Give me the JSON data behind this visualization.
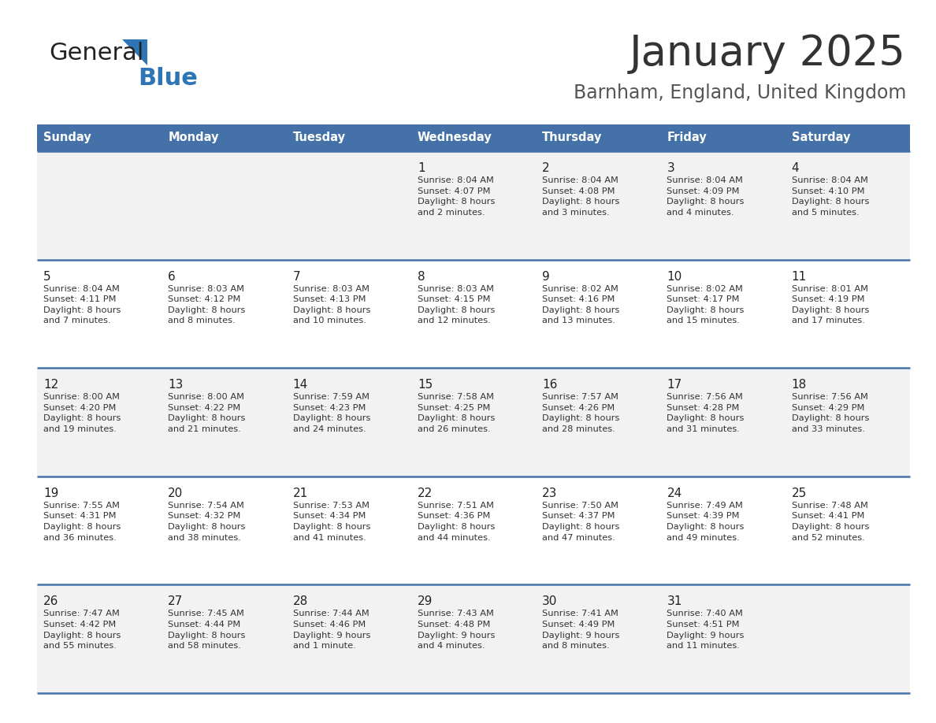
{
  "title": "January 2025",
  "subtitle": "Barnham, England, United Kingdom",
  "days_of_week": [
    "Sunday",
    "Monday",
    "Tuesday",
    "Wednesday",
    "Thursday",
    "Friday",
    "Saturday"
  ],
  "header_bg": "#4472a8",
  "header_text": "#ffffff",
  "row_bg_light": "#f2f2f2",
  "row_bg_white": "#ffffff",
  "cell_text_color": "#333333",
  "day_num_color": "#222222",
  "divider_color": "#4472a8",
  "logo_general_color": "#222222",
  "logo_blue_color": "#2e75b6",
  "logo_triangle_color": "#2e75b6",
  "title_color": "#333333",
  "subtitle_color": "#555555",
  "calendar_data": [
    [
      {
        "day": 0,
        "info": ""
      },
      {
        "day": 0,
        "info": ""
      },
      {
        "day": 0,
        "info": ""
      },
      {
        "day": 1,
        "info": "Sunrise: 8:04 AM\nSunset: 4:07 PM\nDaylight: 8 hours\nand 2 minutes."
      },
      {
        "day": 2,
        "info": "Sunrise: 8:04 AM\nSunset: 4:08 PM\nDaylight: 8 hours\nand 3 minutes."
      },
      {
        "day": 3,
        "info": "Sunrise: 8:04 AM\nSunset: 4:09 PM\nDaylight: 8 hours\nand 4 minutes."
      },
      {
        "day": 4,
        "info": "Sunrise: 8:04 AM\nSunset: 4:10 PM\nDaylight: 8 hours\nand 5 minutes."
      }
    ],
    [
      {
        "day": 5,
        "info": "Sunrise: 8:04 AM\nSunset: 4:11 PM\nDaylight: 8 hours\nand 7 minutes."
      },
      {
        "day": 6,
        "info": "Sunrise: 8:03 AM\nSunset: 4:12 PM\nDaylight: 8 hours\nand 8 minutes."
      },
      {
        "day": 7,
        "info": "Sunrise: 8:03 AM\nSunset: 4:13 PM\nDaylight: 8 hours\nand 10 minutes."
      },
      {
        "day": 8,
        "info": "Sunrise: 8:03 AM\nSunset: 4:15 PM\nDaylight: 8 hours\nand 12 minutes."
      },
      {
        "day": 9,
        "info": "Sunrise: 8:02 AM\nSunset: 4:16 PM\nDaylight: 8 hours\nand 13 minutes."
      },
      {
        "day": 10,
        "info": "Sunrise: 8:02 AM\nSunset: 4:17 PM\nDaylight: 8 hours\nand 15 minutes."
      },
      {
        "day": 11,
        "info": "Sunrise: 8:01 AM\nSunset: 4:19 PM\nDaylight: 8 hours\nand 17 minutes."
      }
    ],
    [
      {
        "day": 12,
        "info": "Sunrise: 8:00 AM\nSunset: 4:20 PM\nDaylight: 8 hours\nand 19 minutes."
      },
      {
        "day": 13,
        "info": "Sunrise: 8:00 AM\nSunset: 4:22 PM\nDaylight: 8 hours\nand 21 minutes."
      },
      {
        "day": 14,
        "info": "Sunrise: 7:59 AM\nSunset: 4:23 PM\nDaylight: 8 hours\nand 24 minutes."
      },
      {
        "day": 15,
        "info": "Sunrise: 7:58 AM\nSunset: 4:25 PM\nDaylight: 8 hours\nand 26 minutes."
      },
      {
        "day": 16,
        "info": "Sunrise: 7:57 AM\nSunset: 4:26 PM\nDaylight: 8 hours\nand 28 minutes."
      },
      {
        "day": 17,
        "info": "Sunrise: 7:56 AM\nSunset: 4:28 PM\nDaylight: 8 hours\nand 31 minutes."
      },
      {
        "day": 18,
        "info": "Sunrise: 7:56 AM\nSunset: 4:29 PM\nDaylight: 8 hours\nand 33 minutes."
      }
    ],
    [
      {
        "day": 19,
        "info": "Sunrise: 7:55 AM\nSunset: 4:31 PM\nDaylight: 8 hours\nand 36 minutes."
      },
      {
        "day": 20,
        "info": "Sunrise: 7:54 AM\nSunset: 4:32 PM\nDaylight: 8 hours\nand 38 minutes."
      },
      {
        "day": 21,
        "info": "Sunrise: 7:53 AM\nSunset: 4:34 PM\nDaylight: 8 hours\nand 41 minutes."
      },
      {
        "day": 22,
        "info": "Sunrise: 7:51 AM\nSunset: 4:36 PM\nDaylight: 8 hours\nand 44 minutes."
      },
      {
        "day": 23,
        "info": "Sunrise: 7:50 AM\nSunset: 4:37 PM\nDaylight: 8 hours\nand 47 minutes."
      },
      {
        "day": 24,
        "info": "Sunrise: 7:49 AM\nSunset: 4:39 PM\nDaylight: 8 hours\nand 49 minutes."
      },
      {
        "day": 25,
        "info": "Sunrise: 7:48 AM\nSunset: 4:41 PM\nDaylight: 8 hours\nand 52 minutes."
      }
    ],
    [
      {
        "day": 26,
        "info": "Sunrise: 7:47 AM\nSunset: 4:42 PM\nDaylight: 8 hours\nand 55 minutes."
      },
      {
        "day": 27,
        "info": "Sunrise: 7:45 AM\nSunset: 4:44 PM\nDaylight: 8 hours\nand 58 minutes."
      },
      {
        "day": 28,
        "info": "Sunrise: 7:44 AM\nSunset: 4:46 PM\nDaylight: 9 hours\nand 1 minute."
      },
      {
        "day": 29,
        "info": "Sunrise: 7:43 AM\nSunset: 4:48 PM\nDaylight: 9 hours\nand 4 minutes."
      },
      {
        "day": 30,
        "info": "Sunrise: 7:41 AM\nSunset: 4:49 PM\nDaylight: 9 hours\nand 8 minutes."
      },
      {
        "day": 31,
        "info": "Sunrise: 7:40 AM\nSunset: 4:51 PM\nDaylight: 9 hours\nand 11 minutes."
      },
      {
        "day": 0,
        "info": ""
      }
    ]
  ]
}
